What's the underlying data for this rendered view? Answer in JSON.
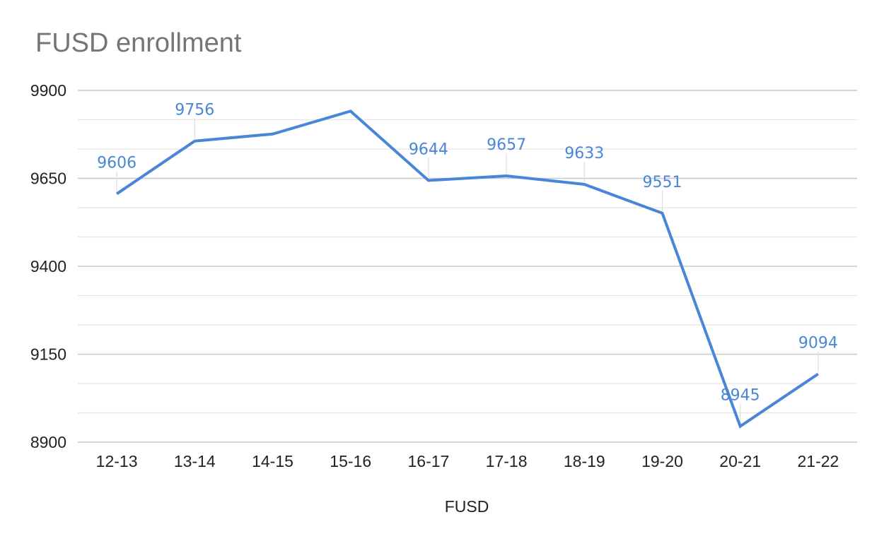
{
  "chart_data": {
    "type": "line",
    "title": "FUSD enrollment",
    "xlabel": "FUSD",
    "ylabel": "",
    "categories": [
      "12-13",
      "13-14",
      "14-15",
      "15-16",
      "16-17",
      "17-18",
      "18-19",
      "19-20",
      "20-21",
      "21-22"
    ],
    "series": [
      {
        "name": "FUSD",
        "color": "#4a86d8",
        "values": [
          9606,
          9756,
          9776,
          9841,
          9644,
          9657,
          9633,
          9551,
          8945,
          9094
        ],
        "data_labels": [
          "9606",
          "9756",
          null,
          null,
          "9644",
          "9657",
          "9633",
          "9551",
          "8945",
          "9094"
        ]
      }
    ],
    "yticks": [
      "9900",
      "9650",
      "9400",
      "9150",
      "8900"
    ],
    "ylim": [
      8900,
      9900
    ],
    "grid": true,
    "legend": "none"
  }
}
